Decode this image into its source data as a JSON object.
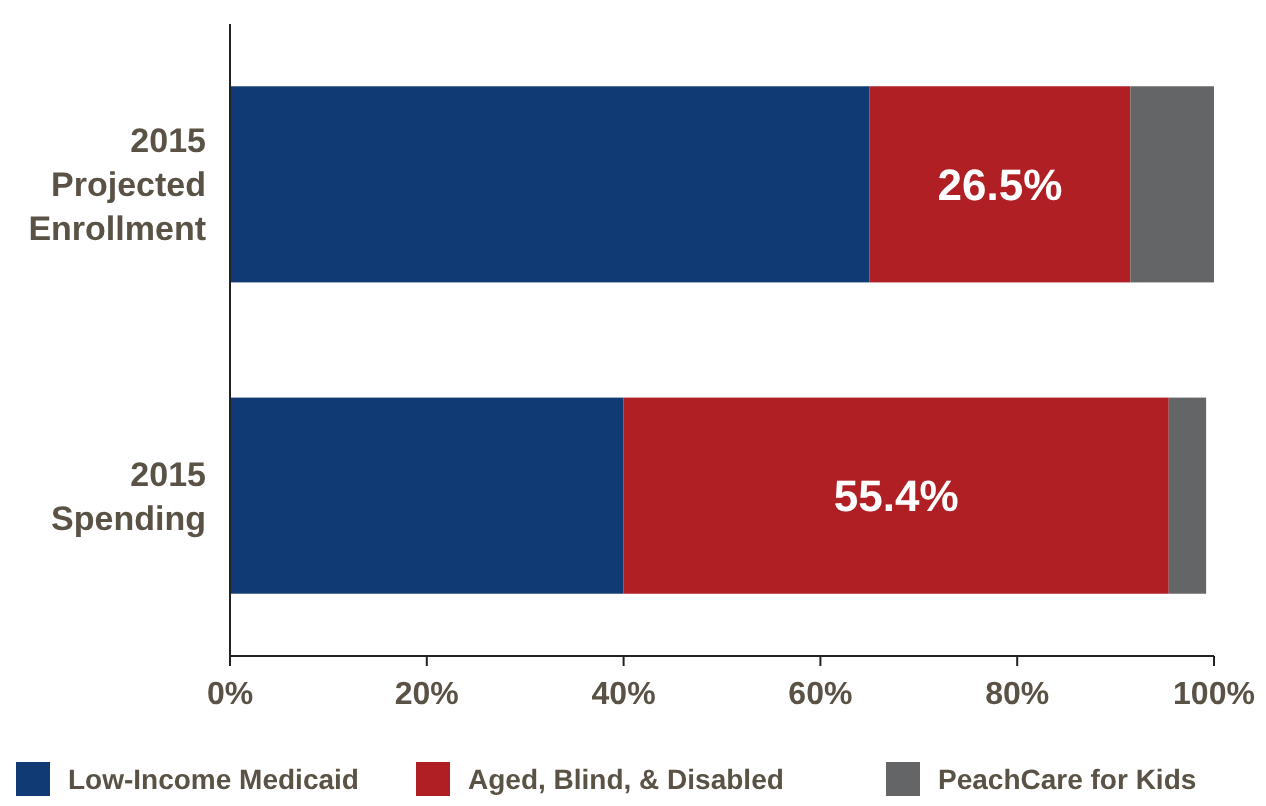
{
  "chart_data": {
    "type": "bar",
    "orientation": "horizontal",
    "stacked": true,
    "categories": [
      "2015 Projected Enrollment",
      "2015 Spending"
    ],
    "series": [
      {
        "name": "Low-Income Medicaid",
        "color": "#0f3a73",
        "values": [
          65.0,
          40.0
        ]
      },
      {
        "name": "Aged, Blind, & Disabled",
        "color": "#b01f24",
        "values": [
          26.5,
          55.4
        ],
        "value_labels": [
          "26.5%",
          "55.4%"
        ]
      },
      {
        "name": "PeachCare for Kids",
        "color": "#646567",
        "values": [
          8.5,
          3.8
        ]
      }
    ],
    "xlim": [
      0,
      100
    ],
    "xticks": [
      {
        "value": 0,
        "label": "0%"
      },
      {
        "value": 20,
        "label": "20%"
      },
      {
        "value": 40,
        "label": "40%"
      },
      {
        "value": 60,
        "label": "60%"
      },
      {
        "value": 80,
        "label": "80%"
      },
      {
        "value": 100,
        "label": "100%"
      }
    ],
    "grid": false,
    "legend": "bottom"
  }
}
